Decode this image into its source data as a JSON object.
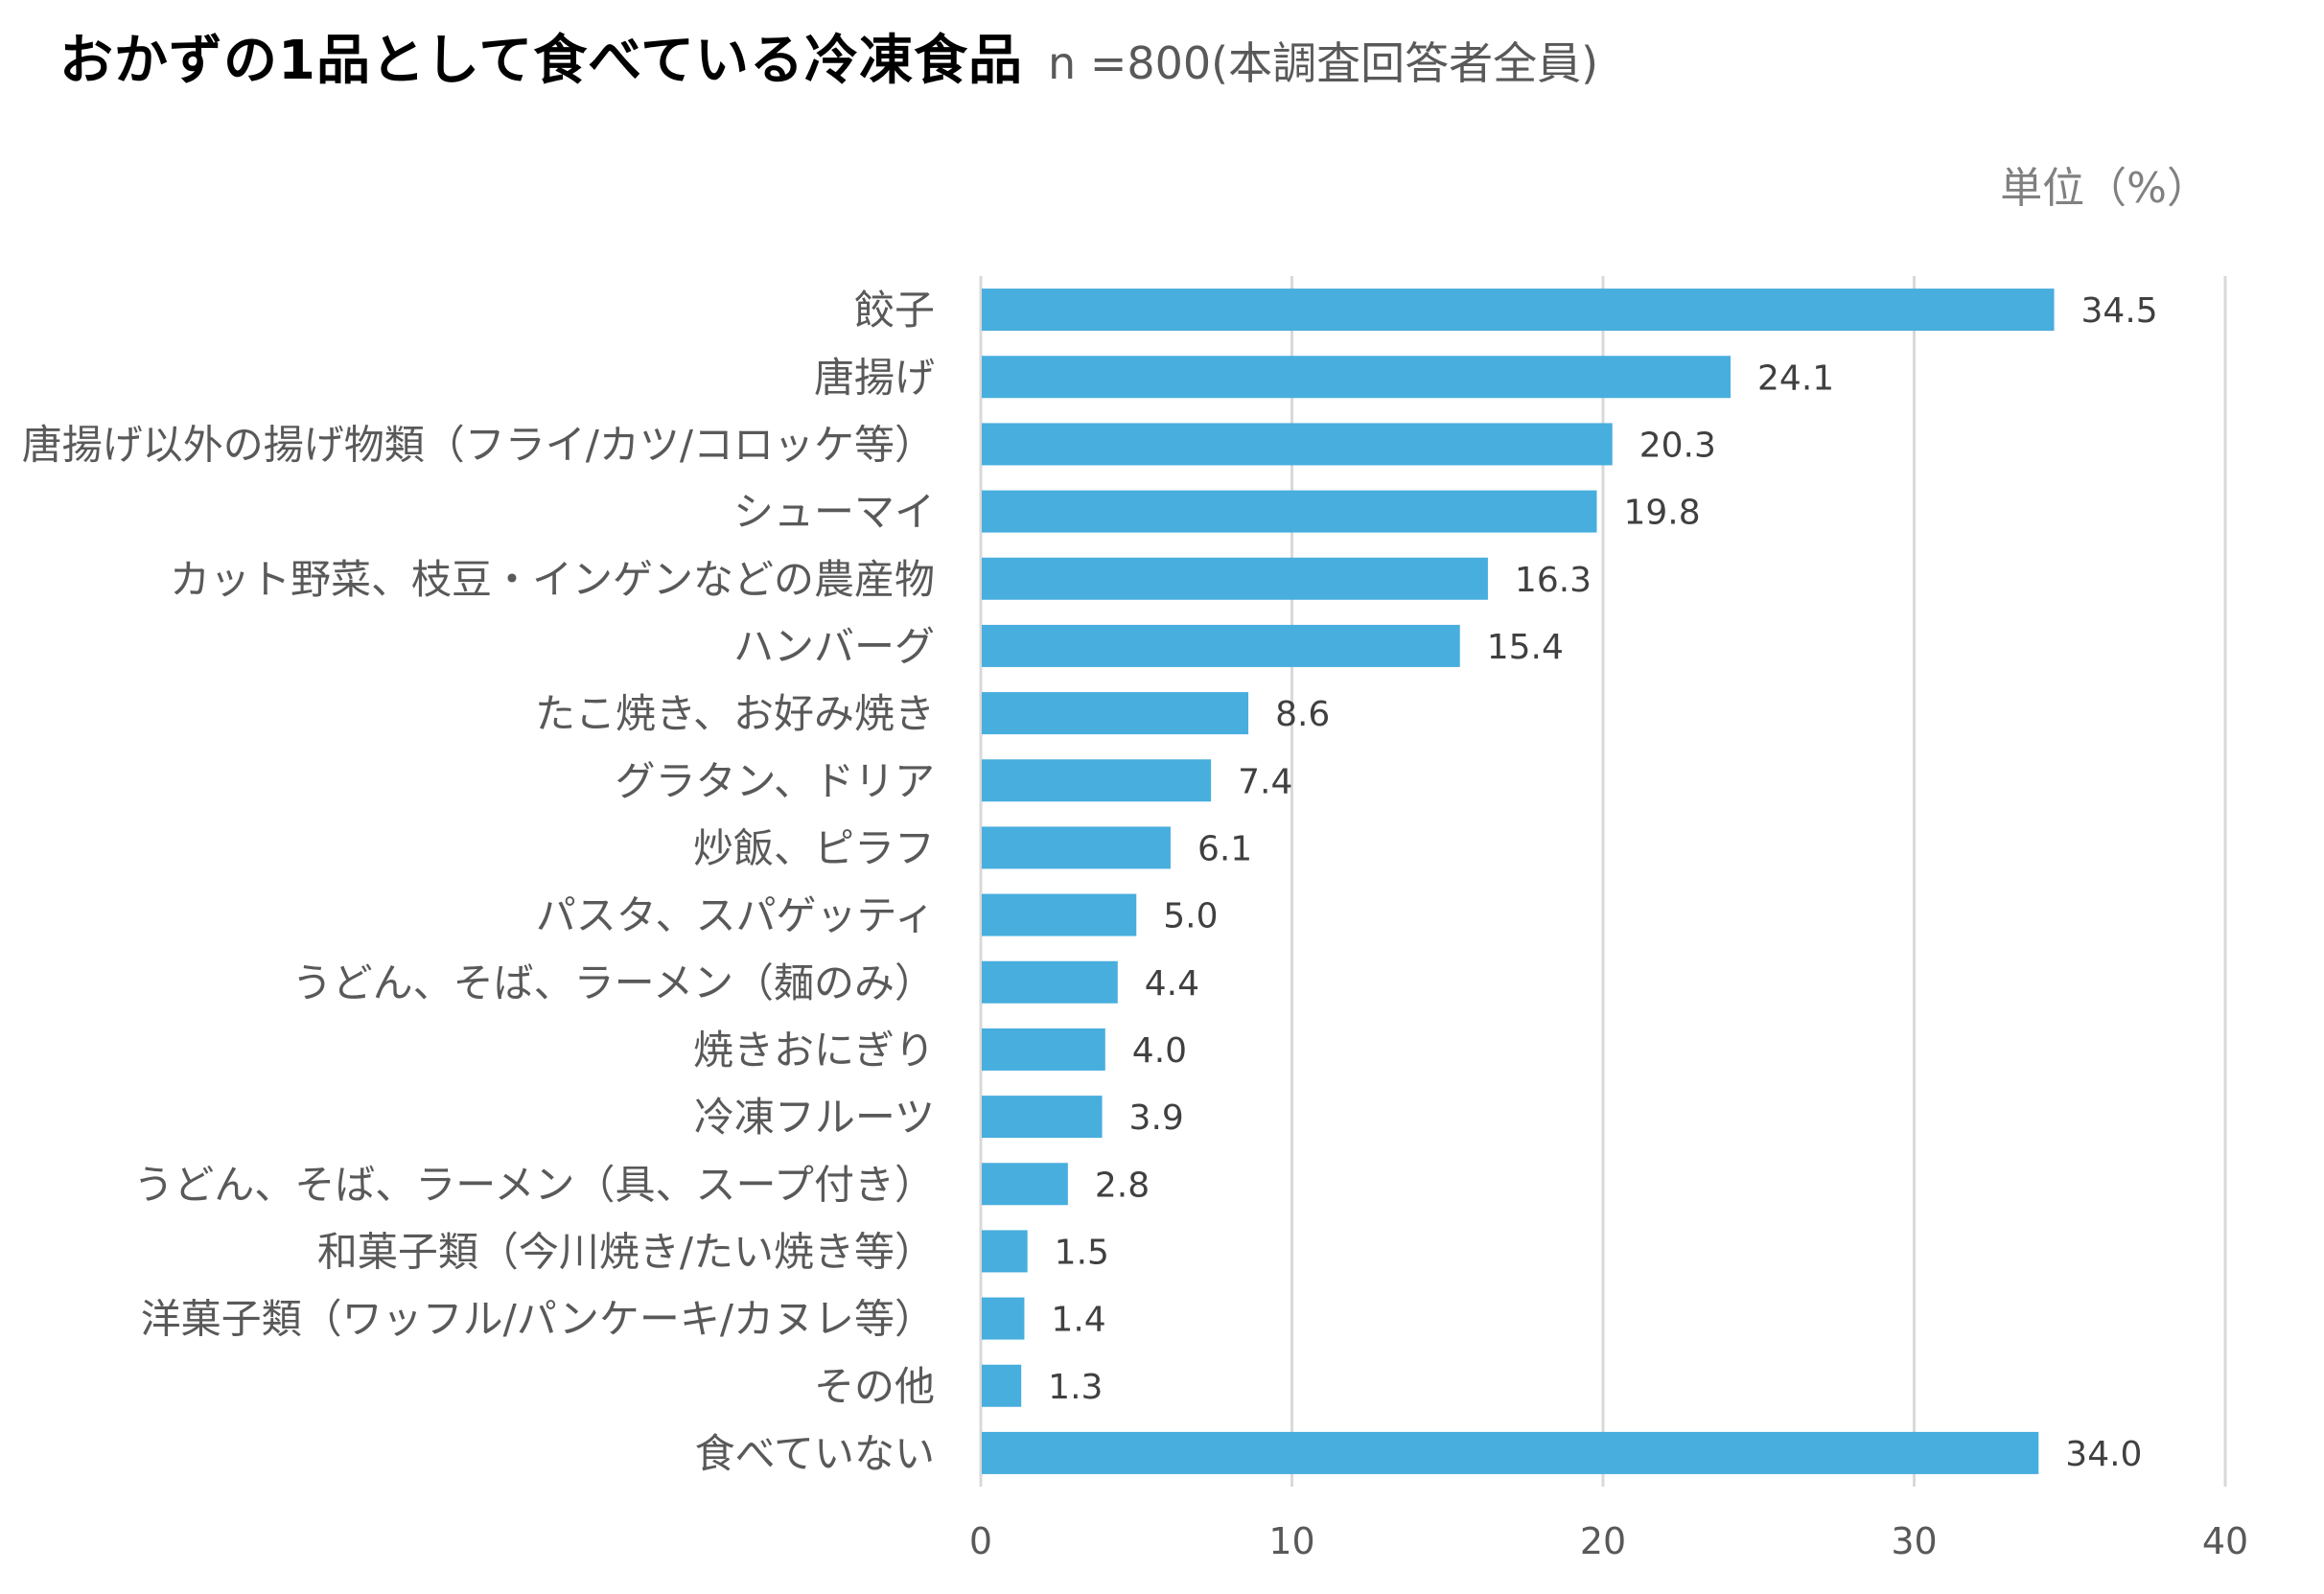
{
  "header": {
    "title": "おかずの1品として食べている冷凍食品",
    "subtitle": "n =800(本調査回答者全員)",
    "unit": "単位（%）"
  },
  "chart_data": {
    "type": "bar",
    "orientation": "horizontal",
    "title": "おかずの1品として食べている冷凍食品",
    "subtitle": "n =800(本調査回答者全員)",
    "xlabel": "",
    "ylabel": "",
    "unit_label": "単位（%）",
    "xlim": [
      0,
      40
    ],
    "xticks": [
      0,
      10,
      20,
      30,
      40
    ],
    "grid": "vertical",
    "legend": "none",
    "bar_color": "#48AEDE",
    "categories": [
      "餃子",
      "唐揚げ",
      "唐揚げ以外の揚げ物類（フライ/カツ/コロッケ等）",
      "シューマイ",
      "カット野菜、枝豆・インゲンなどの農産物",
      "ハンバーグ",
      "たこ焼き、お好み焼き",
      "グラタン、ドリア",
      "炒飯、ピラフ",
      "パスタ、スパゲッティ",
      "うどん、そば、ラーメン（麺のみ）",
      "焼きおにぎり",
      "冷凍フルーツ",
      "うどん、そば、ラーメン（具、スープ付き）",
      "和菓子類（今川焼き/たい焼き等）",
      "洋菓子類（ワッフル/パンケーキ/カヌレ等）",
      "その他",
      "食べていない"
    ],
    "values": [
      34.5,
      24.1,
      20.3,
      19.8,
      16.3,
      15.4,
      8.6,
      7.4,
      6.1,
      5.0,
      4.4,
      4.0,
      3.9,
      2.8,
      1.5,
      1.4,
      1.3,
      34.0
    ],
    "value_labels": [
      "34.5",
      "24.1",
      "20.3",
      "19.8",
      "16.3",
      "15.4",
      "8.6",
      "7.4",
      "6.1",
      "5.0",
      "4.4",
      "4.0",
      "3.9",
      "2.8",
      "1.5",
      "1.4",
      "1.3",
      "34.0"
    ]
  }
}
